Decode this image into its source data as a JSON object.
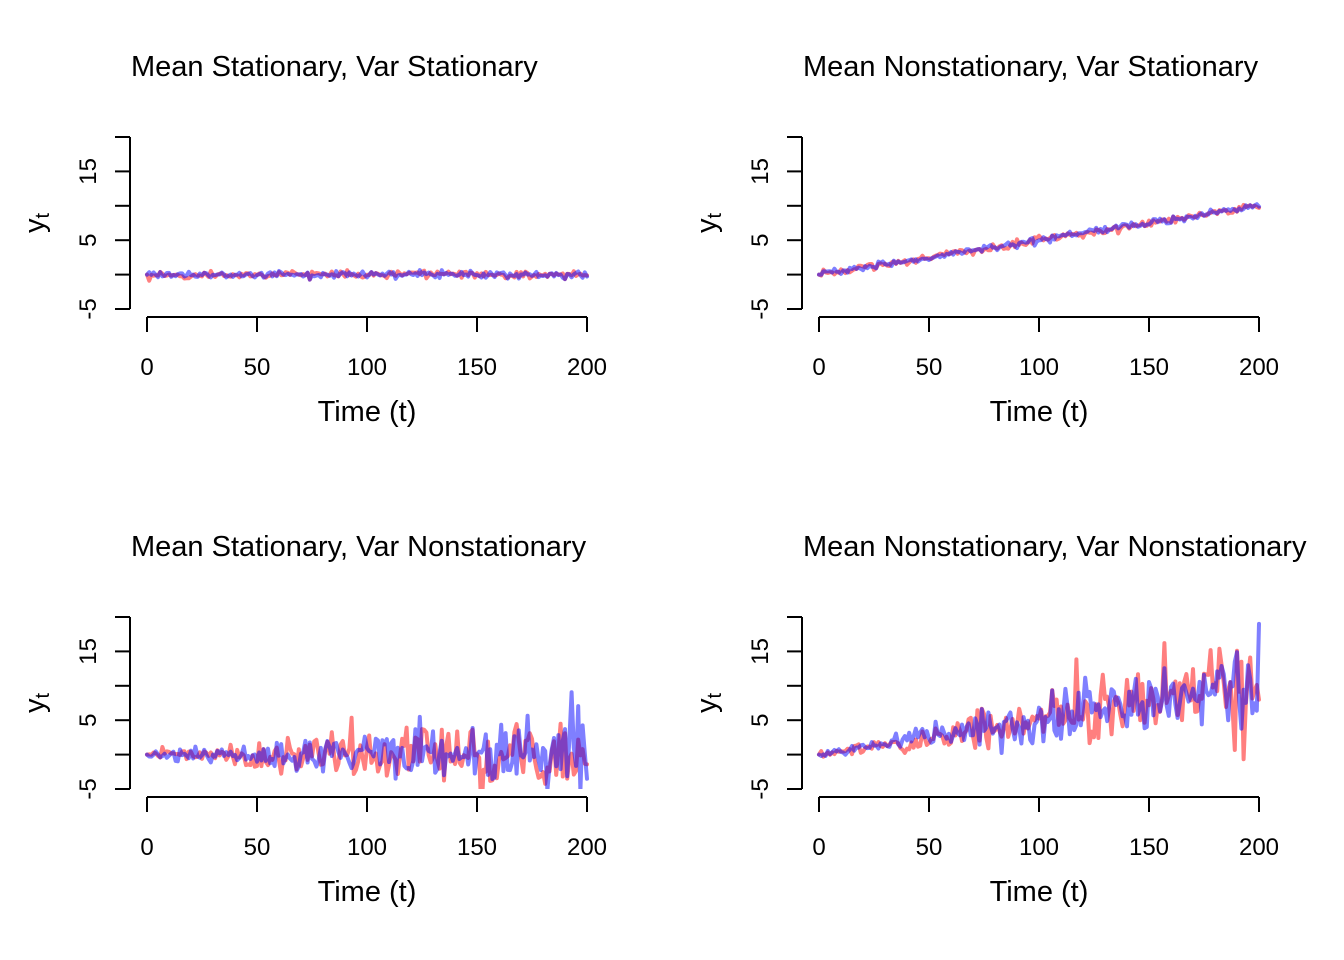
{
  "chart_data": [
    {
      "type": "line",
      "panel": "top-left",
      "title": "Mean Stationary, Var Stationary",
      "xlabel": "Time (t)",
      "ylabel": "y",
      "ylabel_subscript": "t",
      "xlim": [
        0,
        200
      ],
      "ylim": [
        -5,
        20
      ],
      "x_ticks": [
        0,
        50,
        100,
        150,
        200
      ],
      "x_tick_labels": [
        "0",
        "50",
        "100",
        "150",
        "200"
      ],
      "y_ticks": [
        -5,
        0,
        5,
        10,
        15,
        20
      ],
      "y_tick_labels": [
        "-5",
        "",
        "5",
        "",
        "15",
        ""
      ],
      "grid": false,
      "series": [
        {
          "name": "series-red",
          "color": "#FF0000",
          "alpha": 0.5,
          "model": {
            "start": 0,
            "slope": 0,
            "noise_sd_start": 0.25,
            "noise_sd_end": 0.25,
            "seed": 11
          }
        },
        {
          "name": "series-blue",
          "color": "#0000FF",
          "alpha": 0.5,
          "model": {
            "start": 0,
            "slope": 0,
            "noise_sd_start": 0.25,
            "noise_sd_end": 0.25,
            "seed": 12
          }
        }
      ]
    },
    {
      "type": "line",
      "panel": "top-right",
      "title": "Mean Nonstationary, Var Stationary",
      "xlabel": "Time (t)",
      "ylabel": "y",
      "ylabel_subscript": "t",
      "xlim": [
        0,
        200
      ],
      "ylim": [
        -5,
        20
      ],
      "x_ticks": [
        0,
        50,
        100,
        150,
        200
      ],
      "x_tick_labels": [
        "0",
        "50",
        "100",
        "150",
        "200"
      ],
      "y_ticks": [
        -5,
        0,
        5,
        10,
        15,
        20
      ],
      "y_tick_labels": [
        "-5",
        "",
        "5",
        "",
        "15",
        ""
      ],
      "grid": false,
      "series": [
        {
          "name": "series-red",
          "color": "#FF0000",
          "alpha": 0.5,
          "model": {
            "start": 0,
            "slope": 0.05,
            "noise_sd_start": 0.25,
            "noise_sd_end": 0.25,
            "seed": 21
          }
        },
        {
          "name": "series-blue",
          "color": "#0000FF",
          "alpha": 0.5,
          "model": {
            "start": 0,
            "slope": 0.05,
            "noise_sd_start": 0.25,
            "noise_sd_end": 0.25,
            "seed": 22
          }
        }
      ]
    },
    {
      "type": "line",
      "panel": "bottom-left",
      "title": "Mean Stationary, Var Nonstationary",
      "xlabel": "Time (t)",
      "ylabel": "y",
      "ylabel_subscript": "t",
      "xlim": [
        0,
        200
      ],
      "ylim": [
        -5,
        20
      ],
      "x_ticks": [
        0,
        50,
        100,
        150,
        200
      ],
      "x_tick_labels": [
        "0",
        "50",
        "100",
        "150",
        "200"
      ],
      "y_ticks": [
        -5,
        0,
        5,
        10,
        15,
        20
      ],
      "y_tick_labels": [
        "-5",
        "",
        "5",
        "",
        "15",
        ""
      ],
      "grid": false,
      "series": [
        {
          "name": "series-red",
          "color": "#FF0000",
          "alpha": 0.5,
          "model": {
            "start": 0,
            "slope": 0,
            "noise_sd_start": 0.2,
            "noise_sd_end": 3.2,
            "seed": 31
          }
        },
        {
          "name": "series-blue",
          "color": "#0000FF",
          "alpha": 0.5,
          "model": {
            "start": 0,
            "slope": 0,
            "noise_sd_start": 0.2,
            "noise_sd_end": 3.2,
            "seed": 32
          }
        }
      ]
    },
    {
      "type": "line",
      "panel": "bottom-right",
      "title": "Mean Nonstationary, Var Nonstationary",
      "xlabel": "Time (t)",
      "ylabel": "y",
      "ylabel_subscript": "t",
      "xlim": [
        0,
        200
      ],
      "ylim": [
        -5,
        20
      ],
      "x_ticks": [
        0,
        50,
        100,
        150,
        200
      ],
      "x_tick_labels": [
        "0",
        "50",
        "100",
        "150",
        "200"
      ],
      "y_ticks": [
        -5,
        0,
        5,
        10,
        15,
        20
      ],
      "y_tick_labels": [
        "-5",
        "",
        "5",
        "",
        "15",
        ""
      ],
      "grid": false,
      "series": [
        {
          "name": "series-red",
          "color": "#FF0000",
          "alpha": 0.5,
          "model": {
            "start": 0,
            "slope": 0.05,
            "noise_sd_start": 0.2,
            "noise_sd_end": 3.2,
            "seed": 41,
            "last_value": 8
          }
        },
        {
          "name": "series-blue",
          "color": "#0000FF",
          "alpha": 0.5,
          "model": {
            "start": 0,
            "slope": 0.05,
            "noise_sd_start": 0.2,
            "noise_sd_end": 3.2,
            "seed": 42,
            "last_value": 19
          }
        }
      ]
    }
  ]
}
